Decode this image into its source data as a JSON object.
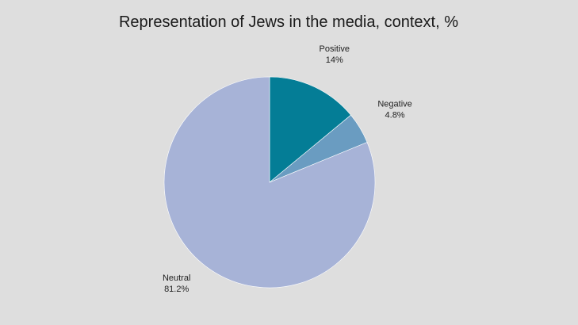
{
  "chart_data": {
    "type": "pie",
    "title": "Representation of Jews in the media, context, %",
    "slices": [
      {
        "label": "Positive",
        "value": 14,
        "value_label": "14%",
        "color": "#047d96"
      },
      {
        "label": "Negative",
        "value": 4.8,
        "value_label": "4.8%",
        "color": "#6a9cc1"
      },
      {
        "label": "Neutral",
        "value": 81.2,
        "value_label": "81.2%",
        "color": "#a7b3d7"
      }
    ],
    "start_direction": "12 o'clock",
    "order": "clockwise",
    "legend": "none",
    "labels": "outside slices"
  },
  "colors": {
    "background": "#dedede",
    "slice_edge": "#ffffff"
  }
}
